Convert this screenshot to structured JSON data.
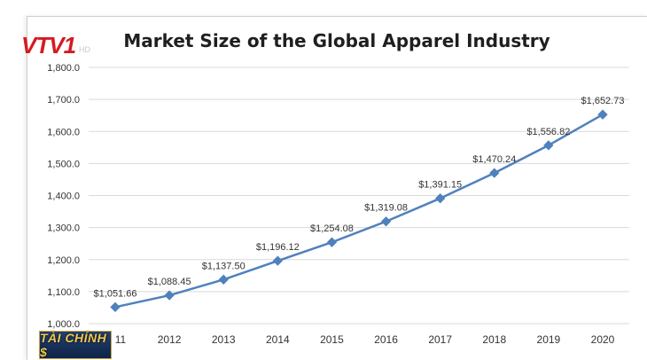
{
  "logo": {
    "text": "VTV1",
    "suffix": "HD"
  },
  "badge": {
    "text": "TÀI CHÍNH $"
  },
  "colors": {
    "series": "#4f81bd",
    "gridline": "#d9d9d9",
    "axis_text": "#333333",
    "brand_red": "#d71920"
  },
  "chart_data": {
    "type": "line",
    "title": "Market Size of the Global Apparel Industry",
    "x": [
      "2011",
      "2012",
      "2013",
      "2014",
      "2015",
      "2016",
      "2017",
      "2018",
      "2019",
      "2020"
    ],
    "x_tick_labels": [
      "11",
      "2012",
      "2013",
      "2014",
      "2015",
      "2016",
      "2017",
      "2018",
      "2019",
      "2020"
    ],
    "series": [
      {
        "values": [
          1051.66,
          1088.45,
          1137.5,
          1196.12,
          1254.08,
          1319.08,
          1391.15,
          1470.24,
          1556.82,
          1652.73
        ],
        "labels": [
          "$1,051.66",
          "$1,088.45",
          "$1,137.50",
          "$1,196.12",
          "$1,254.08",
          "$1,319.08",
          "$1,391.15",
          "$1,470.24",
          "$1,556.82",
          "$1,652.73"
        ]
      }
    ],
    "ylim": [
      1000,
      1800
    ],
    "y_ticks": [
      1000,
      1100,
      1200,
      1300,
      1400,
      1500,
      1600,
      1700,
      1800
    ],
    "y_tick_labels": [
      "1,000.0",
      "1,100.0",
      "1,200.0",
      "1,300.0",
      "1,400.0",
      "1,500.0",
      "1,600.0",
      "1,700.0",
      "1,800.0"
    ],
    "xlabel": "",
    "ylabel": "",
    "grid": true,
    "legend": "none"
  }
}
